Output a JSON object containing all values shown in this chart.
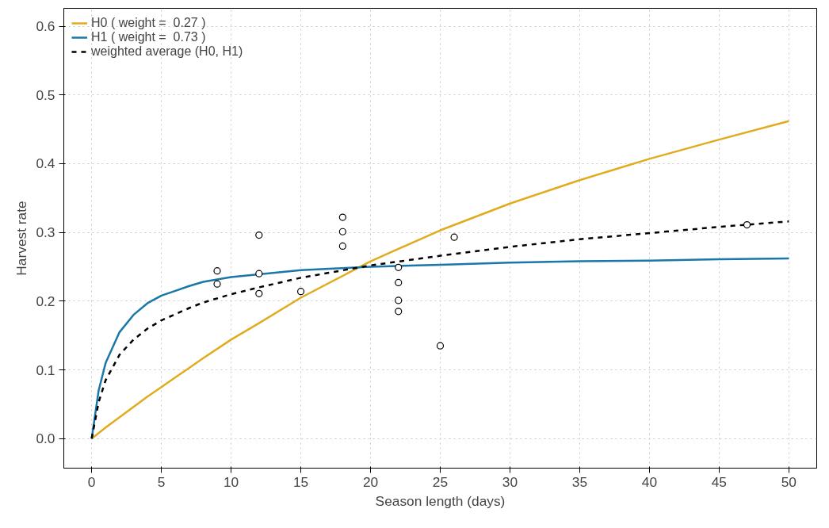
{
  "chart_data": {
    "type": "line",
    "xlabel": "Season length (days)",
    "ylabel": "Harvest rate",
    "xlim": [
      -2,
      52
    ],
    "ylim": [
      -0.043,
      0.626
    ],
    "xticks": [
      0,
      5,
      10,
      15,
      20,
      25,
      30,
      35,
      40,
      45,
      50
    ],
    "yticks": [
      {
        "value": 0,
        "label": "0.0"
      },
      {
        "value": 0.1,
        "label": "0.1"
      },
      {
        "value": 0.2,
        "label": "0.2"
      },
      {
        "value": 0.3,
        "label": "0.3"
      },
      {
        "value": 0.4,
        "label": "0.4"
      },
      {
        "value": 0.5,
        "label": "0.5"
      },
      {
        "value": 0.6,
        "label": "0.6"
      }
    ],
    "grid": true,
    "legend": "top left",
    "marker": "none",
    "x": [
      0,
      0.5,
      1,
      2,
      3,
      4,
      5,
      6,
      7,
      8,
      10,
      12,
      15,
      20,
      25,
      30,
      35,
      40,
      45,
      50
    ],
    "series": [
      {
        "name": "H0 ( weight =  0.27 )",
        "color": "#e0ac1e",
        "line_style": "solid",
        "values": [
          0,
          0.008,
          0.016,
          0.031,
          0.046,
          0.061,
          0.075,
          0.089,
          0.103,
          0.117,
          0.144,
          0.168,
          0.205,
          0.258,
          0.303,
          0.342,
          0.376,
          0.407,
          0.435,
          0.462
        ]
      },
      {
        "name": "H1 ( weight =  0.73 )",
        "color": "#1a77a8",
        "line_style": "solid",
        "values": [
          0,
          0.07,
          0.11,
          0.155,
          0.18,
          0.197,
          0.208,
          0.215,
          0.222,
          0.228,
          0.235,
          0.239,
          0.245,
          0.25,
          0.253,
          0.256,
          0.258,
          0.259,
          0.261,
          0.262
        ]
      },
      {
        "name": "weighted average (H0, H1)",
        "color": "#000000",
        "line_style": "dashed",
        "values": [
          0,
          0.053,
          0.085,
          0.122,
          0.144,
          0.16,
          0.172,
          0.181,
          0.19,
          0.198,
          0.21,
          0.22,
          0.234,
          0.252,
          0.266,
          0.279,
          0.29,
          0.299,
          0.308,
          0.316
        ]
      },
      {
        "type": "scatter",
        "marker": "circle",
        "color": "#000000",
        "x": [
          9,
          9,
          12,
          12,
          12,
          15,
          18,
          18,
          18,
          22,
          22,
          22,
          22,
          25,
          26,
          47
        ],
        "values": [
          0.244,
          0.225,
          0.296,
          0.24,
          0.211,
          0.214,
          0.322,
          0.301,
          0.28,
          0.249,
          0.227,
          0.201,
          0.185,
          0.135,
          0.293,
          0.311
        ]
      }
    ]
  }
}
